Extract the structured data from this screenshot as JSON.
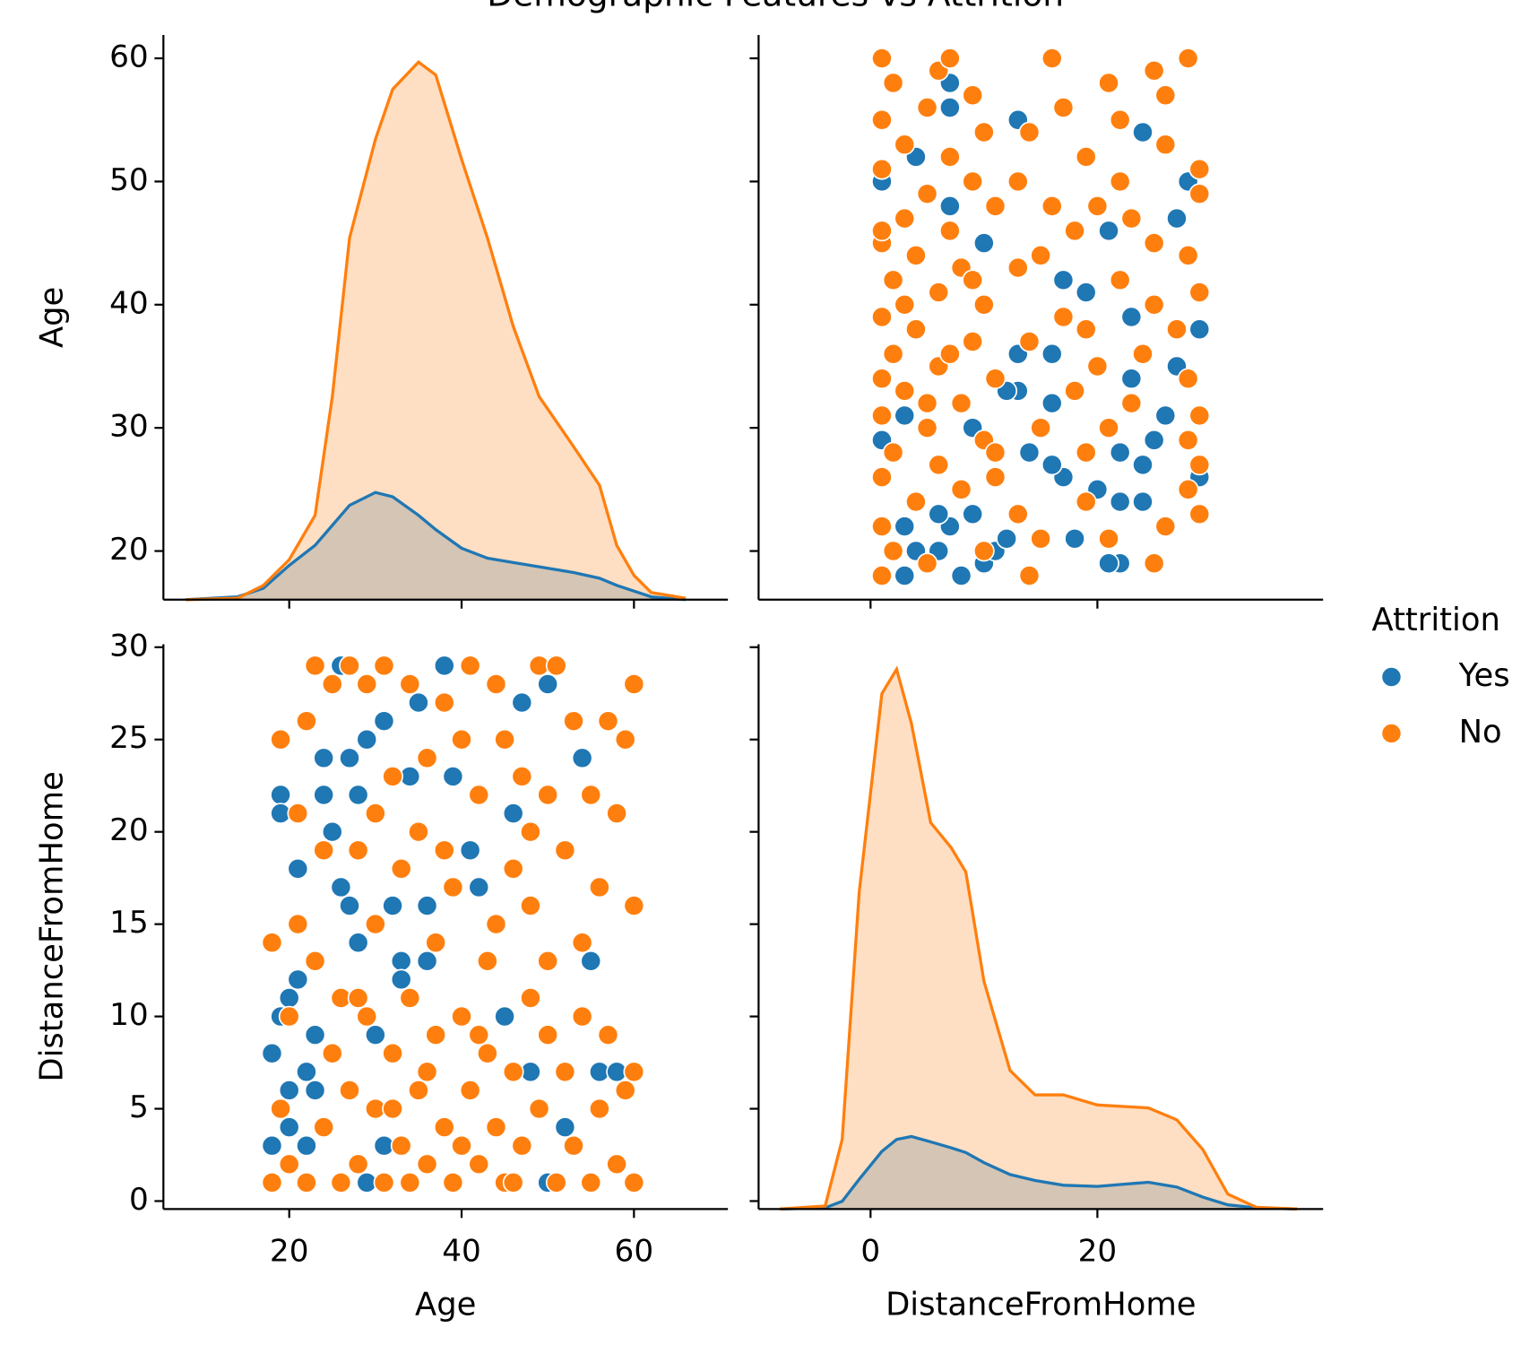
{
  "title": "Demographic Features vs Attrition",
  "legend_title": "Attrition",
  "chart_data": [
    {
      "type": "kde",
      "x": [
        8,
        14,
        17,
        20,
        23,
        25,
        27,
        30,
        32,
        35,
        37,
        40,
        43,
        46,
        49,
        53,
        56,
        58,
        60,
        62,
        66
      ],
      "xlim": [
        5.4,
        70.9
      ],
      "xticks": [
        20,
        40,
        60
      ],
      "ylim": [
        16.05,
        61.9
      ],
      "yticks": [
        20,
        30,
        40,
        50,
        60
      ],
      "ylabel": "Age",
      "y2lim": [
        0,
        0.0395
      ],
      "series": [
        {
          "name": "Yes",
          "color": "#1f77b4",
          "axis": "y2",
          "values": [
            0,
            0.0002,
            0.0008,
            0.0024,
            0.0038,
            0.0052,
            0.0066,
            0.0075,
            0.0072,
            0.0059,
            0.0049,
            0.0036,
            0.0029,
            0.0026,
            0.0023,
            0.0019,
            0.0015,
            0.001,
            0.0006,
            0.0002,
            0
          ]
        },
        {
          "name": "No",
          "color": "#ff7f0e",
          "axis": "y2",
          "values": [
            0,
            0.0001,
            0.001,
            0.0028,
            0.0059,
            0.0142,
            0.0253,
            0.0322,
            0.0357,
            0.0376,
            0.0367,
            0.0308,
            0.0253,
            0.0191,
            0.0142,
            0.0107,
            0.008,
            0.0038,
            0.0017,
            0.0005,
            0.0001
          ]
        }
      ]
    },
    {
      "type": "scatter",
      "xlim": [
        -9.87,
        39.9
      ],
      "xticks": [
        0,
        20
      ],
      "ylim": [
        16.05,
        61.9
      ],
      "yticks": [
        20,
        30,
        40,
        50,
        60
      ],
      "series": [
        {
          "name": "Yes",
          "color": "#1f77b4",
          "x": [
            8,
            3,
            22,
            21,
            10,
            11,
            6,
            4,
            18,
            12,
            7,
            3,
            9,
            6,
            24,
            22,
            20,
            29,
            17,
            16,
            22,
            14,
            25,
            1,
            9,
            26,
            3,
            16,
            13,
            23,
            27,
            13,
            29,
            23,
            19,
            17,
            10,
            21,
            27,
            7,
            28,
            1,
            4,
            24,
            13,
            7,
            7,
            12,
            24,
            16
          ],
          "values": [
            18,
            18,
            19,
            19,
            19,
            20,
            20,
            20,
            21,
            21,
            22,
            22,
            23,
            23,
            24,
            24,
            25,
            26,
            26,
            27,
            28,
            28,
            29,
            29,
            30,
            31,
            31,
            32,
            33,
            34,
            35,
            36,
            38,
            39,
            41,
            42,
            45,
            46,
            47,
            48,
            50,
            50,
            52,
            54,
            55,
            56,
            58,
            33,
            27,
            36
          ]
        },
        {
          "name": "No",
          "color": "#ff7f0e",
          "x": [
            14,
            1,
            25,
            5,
            10,
            2,
            21,
            15,
            26,
            1,
            29,
            13,
            4,
            19,
            28,
            8,
            11,
            1,
            29,
            6,
            19,
            2,
            28,
            10,
            15,
            5,
            29,
            1,
            23,
            8,
            18,
            3,
            28,
            11,
            20,
            6,
            24,
            2,
            14,
            9,
            27,
            4,
            17,
            1,
            25,
            10,
            29,
            6,
            22,
            2,
            13,
            8,
            28,
            4,
            25,
            1,
            18,
            7,
            23,
            3,
            11,
            16,
            29,
            5,
            22,
            9,
            29,
            1,
            19,
            7,
            26,
            3,
            14,
            10,
            22,
            1,
            17,
            5,
            26,
            9,
            21,
            2,
            25,
            6,
            28,
            16,
            1,
            7,
            11,
            21,
            5,
            1,
            7,
            19,
            3,
            9,
            15,
            1,
            20,
            13
          ],
          "values": [
            18,
            18,
            19,
            19,
            20,
            20,
            21,
            21,
            22,
            22,
            23,
            23,
            24,
            24,
            25,
            25,
            26,
            26,
            27,
            27,
            28,
            28,
            29,
            29,
            30,
            30,
            31,
            31,
            32,
            32,
            33,
            33,
            34,
            34,
            35,
            35,
            36,
            36,
            37,
            37,
            38,
            38,
            39,
            39,
            40,
            40,
            41,
            41,
            42,
            42,
            43,
            43,
            44,
            44,
            45,
            45,
            46,
            46,
            47,
            47,
            48,
            48,
            49,
            49,
            50,
            50,
            51,
            51,
            52,
            52,
            53,
            53,
            54,
            54,
            55,
            55,
            56,
            56,
            57,
            57,
            58,
            58,
            59,
            59,
            60,
            60,
            60,
            60,
            28,
            30,
            32,
            34,
            36,
            38,
            40,
            42,
            44,
            46,
            48,
            50
          ]
        }
      ]
    },
    {
      "type": "scatter",
      "xlim": [
        5.4,
        70.9
      ],
      "xticks": [
        20,
        40,
        60
      ],
      "xlabel": "Age",
      "ylim": [
        -0.43,
        30.16
      ],
      "yticks": [
        0,
        5,
        10,
        15,
        20,
        25,
        30
      ],
      "ylabel": "DistanceFromHome",
      "series": [
        {
          "name": "Yes",
          "color": "#1f77b4",
          "x": [
            18,
            18,
            19,
            19,
            19,
            20,
            20,
            20,
            21,
            21,
            22,
            22,
            23,
            23,
            24,
            24,
            25,
            26,
            26,
            27,
            28,
            28,
            29,
            29,
            30,
            31,
            31,
            32,
            33,
            34,
            35,
            36,
            38,
            39,
            41,
            42,
            45,
            46,
            47,
            48,
            50,
            50,
            52,
            54,
            55,
            56,
            58,
            33,
            27,
            36
          ],
          "values": [
            8,
            3,
            22,
            21,
            10,
            11,
            6,
            4,
            18,
            12,
            7,
            3,
            9,
            6,
            24,
            22,
            20,
            29,
            17,
            16,
            22,
            14,
            25,
            1,
            9,
            26,
            3,
            16,
            13,
            23,
            27,
            13,
            29,
            23,
            19,
            17,
            10,
            21,
            27,
            7,
            28,
            1,
            4,
            24,
            13,
            7,
            7,
            12,
            24,
            16
          ]
        },
        {
          "name": "No",
          "color": "#ff7f0e",
          "x": [
            18,
            18,
            19,
            19,
            20,
            20,
            21,
            21,
            22,
            22,
            23,
            23,
            24,
            24,
            25,
            25,
            26,
            26,
            27,
            27,
            28,
            28,
            29,
            29,
            30,
            30,
            31,
            31,
            32,
            32,
            33,
            33,
            34,
            34,
            35,
            35,
            36,
            36,
            37,
            37,
            38,
            38,
            39,
            39,
            40,
            40,
            41,
            41,
            42,
            42,
            43,
            43,
            44,
            44,
            45,
            45,
            46,
            46,
            47,
            47,
            48,
            48,
            49,
            49,
            50,
            50,
            51,
            51,
            52,
            52,
            53,
            53,
            54,
            54,
            55,
            55,
            56,
            56,
            57,
            57,
            58,
            58,
            59,
            59,
            60,
            60,
            60,
            60,
            28,
            30,
            32,
            34,
            36,
            38,
            40,
            42,
            44,
            46,
            48,
            50
          ],
          "values": [
            14,
            1,
            25,
            5,
            10,
            2,
            21,
            15,
            26,
            1,
            29,
            13,
            4,
            19,
            28,
            8,
            11,
            1,
            29,
            6,
            19,
            2,
            28,
            10,
            15,
            5,
            29,
            1,
            23,
            8,
            18,
            3,
            28,
            11,
            20,
            6,
            24,
            2,
            14,
            9,
            27,
            4,
            17,
            1,
            25,
            10,
            29,
            6,
            22,
            2,
            13,
            8,
            28,
            4,
            25,
            1,
            18,
            7,
            23,
            3,
            11,
            16,
            29,
            5,
            22,
            9,
            29,
            1,
            19,
            7,
            26,
            3,
            14,
            10,
            22,
            1,
            17,
            5,
            26,
            9,
            21,
            2,
            25,
            6,
            28,
            16,
            1,
            7,
            11,
            21,
            5,
            1,
            7,
            19,
            3,
            9,
            15,
            1,
            20,
            13
          ]
        }
      ]
    },
    {
      "type": "kde",
      "x": [
        -8,
        -4,
        -2.5,
        -1,
        1,
        2.3,
        3.6,
        5.3,
        7.1,
        8.4,
        10,
        12.3,
        14.5,
        17,
        20,
        24.5,
        27,
        29.3,
        31.5,
        34,
        37.6
      ],
      "xlim": [
        -9.87,
        39.9
      ],
      "xticks": [
        0,
        20
      ],
      "xlabel": "DistanceFromHome",
      "ylim": [
        -0.43,
        30.16
      ],
      "yticks": [
        0,
        5,
        10,
        15,
        20,
        25,
        30
      ],
      "y2lim": [
        0,
        0.095
      ],
      "series": [
        {
          "name": "Yes",
          "color": "#1f77b4",
          "axis": "y2",
          "values": [
            0,
            0.0002,
            0.0013,
            0.005,
            0.0097,
            0.0117,
            0.0122,
            0.0113,
            0.0103,
            0.0095,
            0.0078,
            0.0058,
            0.0048,
            0.004,
            0.0038,
            0.0045,
            0.0037,
            0.002,
            0.0007,
            0.0002,
            0
          ]
        },
        {
          "name": "No",
          "color": "#ff7f0e",
          "axis": "y2",
          "values": [
            0,
            0.0005,
            0.0117,
            0.0533,
            0.0867,
            0.0908,
            0.0817,
            0.065,
            0.0608,
            0.0567,
            0.0383,
            0.0233,
            0.0192,
            0.0192,
            0.0175,
            0.017,
            0.015,
            0.01,
            0.0025,
            0.0003,
            0
          ]
        }
      ]
    }
  ]
}
